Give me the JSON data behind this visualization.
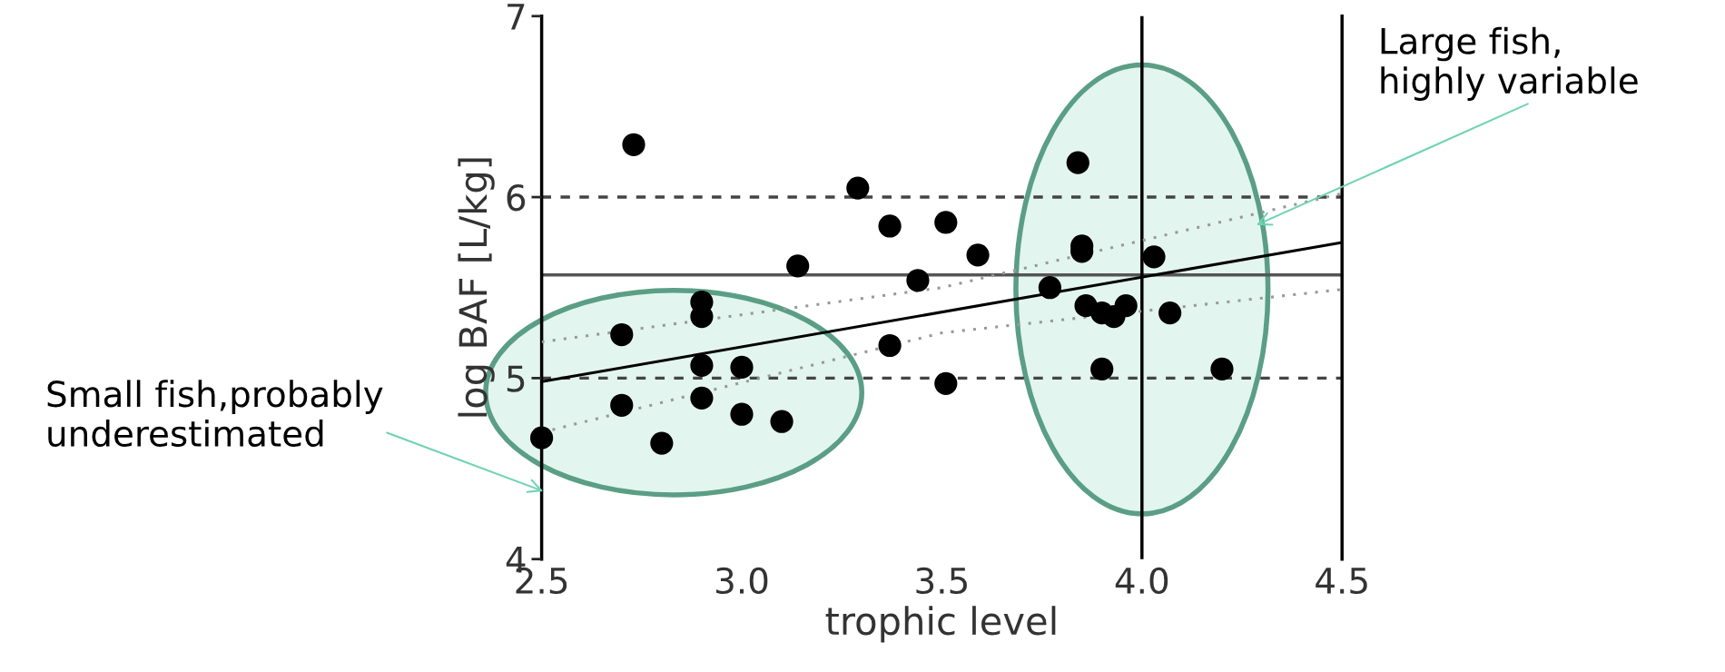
{
  "chart_data": {
    "type": "scatter",
    "xlabel": "trophic level",
    "ylabel": "log BAF [L/kg]",
    "xlim": [
      2.5,
      4.5
    ],
    "ylim": [
      4,
      7
    ],
    "xticks": [
      2.5,
      {
        "value": 3,
        "label": "3.0"
      },
      3.5,
      {
        "value": 4,
        "label": "4.0"
      },
      4.5
    ],
    "yticks": [
      4,
      5,
      6,
      7
    ],
    "grid": false,
    "marker": "circle",
    "series": [
      {
        "color": "#000000",
        "x": [
          2.73,
          2.7,
          2.7,
          2.5,
          2.8,
          2.9,
          2.9,
          2.9,
          2.9,
          3.0,
          3.0,
          3.1,
          3.14,
          3.29,
          3.37,
          3.37,
          3.44,
          3.51,
          3.51,
          3.59,
          3.77,
          3.84,
          3.85,
          3.85,
          3.86,
          3.9,
          3.93,
          3.96,
          3.9,
          4.03,
          4.07,
          4.2
        ],
        "values": [
          6.29,
          5.24,
          4.85,
          4.67,
          4.64,
          5.42,
          5.34,
          5.07,
          4.89,
          5.06,
          4.8,
          4.76,
          5.62,
          6.05,
          5.84,
          5.18,
          5.54,
          5.86,
          4.97,
          5.68,
          5.5,
          6.19,
          5.73,
          5.7,
          5.4,
          5.36,
          5.34,
          5.4,
          5.05,
          5.67,
          5.36,
          5.05
        ]
      },
      {
        "type": "line",
        "color": "#000000",
        "line_style": "solid",
        "marker": "none",
        "x": [
          2.5,
          4.5
        ],
        "values": [
          4.98,
          5.75
        ]
      },
      {
        "type": "line",
        "color": "#999999",
        "line_style": "dotted",
        "marker": "none",
        "x": [
          2.5,
          3.5,
          4.5
        ],
        "values": [
          5.2,
          5.5,
          6.02
        ]
      },
      {
        "type": "line",
        "color": "#999999",
        "line_style": "dotted",
        "marker": "none",
        "x": [
          2.5,
          3.5,
          4.5
        ],
        "values": [
          4.7,
          5.25,
          5.49
        ]
      }
    ],
    "ref_lines": [
      {
        "axis": "y",
        "value": 6,
        "color": "#444444",
        "line_style": "dashed"
      },
      {
        "axis": "y",
        "value": 5,
        "color": "#444444",
        "line_style": "dashed"
      },
      {
        "axis": "y",
        "value": 5.57,
        "color": "#555555",
        "line_style": "solid"
      },
      {
        "axis": "x",
        "value": 4,
        "color": "#000000",
        "line_style": "solid"
      }
    ],
    "annotations": [
      "Small fish,probably\nunderestimated",
      "Large fish,\nhighly variable"
    ]
  }
}
